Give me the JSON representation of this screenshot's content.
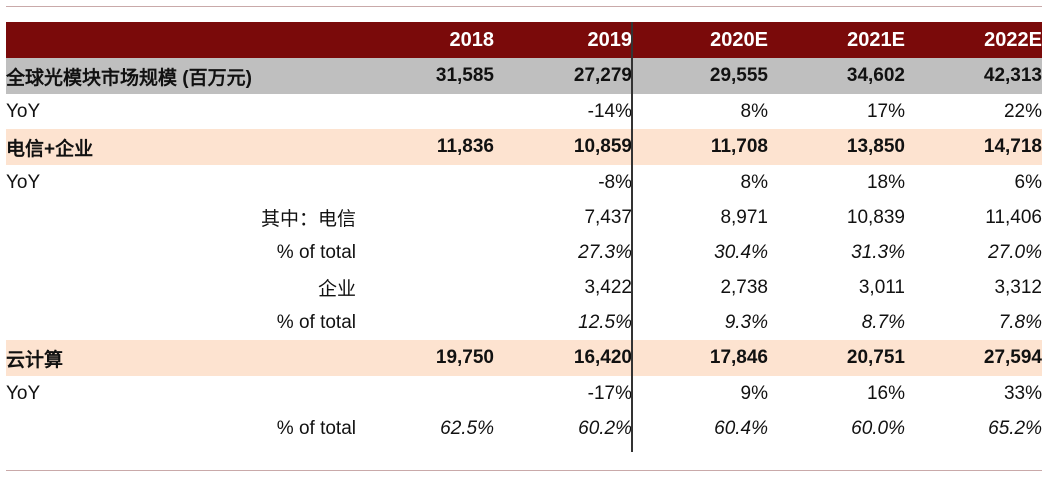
{
  "header": {
    "label": "",
    "years": [
      "2018",
      "2019",
      "2020E",
      "2021E",
      "2022E"
    ]
  },
  "rows": [
    {
      "label": "全球光模块市场规模 (百万元)",
      "values": [
        "31,585",
        "27,279",
        "29,555",
        "34,602",
        "42,313"
      ]
    },
    {
      "label": "YoY",
      "values": [
        "",
        "-14%",
        "8%",
        "17%",
        "22%"
      ]
    },
    {
      "label": "电信+企业",
      "values": [
        "11,836",
        "10,859",
        "11,708",
        "13,850",
        "14,718"
      ]
    },
    {
      "label": "YoY",
      "values": [
        "",
        "-8%",
        "8%",
        "18%",
        "6%"
      ]
    },
    {
      "label": "其中：电信",
      "values": [
        "",
        "7,437",
        "8,971",
        "10,839",
        "11,406"
      ]
    },
    {
      "label": "% of total",
      "values": [
        "",
        "27.3%",
        "30.4%",
        "31.3%",
        "27.0%"
      ]
    },
    {
      "label": "企业",
      "values": [
        "",
        "3,422",
        "2,738",
        "3,011",
        "3,312"
      ]
    },
    {
      "label": "% of total",
      "values": [
        "",
        "12.5%",
        "9.3%",
        "8.7%",
        "7.8%"
      ]
    },
    {
      "label": "云计算",
      "values": [
        "19,750",
        "16,420",
        "17,846",
        "20,751",
        "27,594"
      ]
    },
    {
      "label": "YoY",
      "values": [
        "",
        "-17%",
        "9%",
        "16%",
        "33%"
      ]
    },
    {
      "label": "% of total",
      "values": [
        "62.5%",
        "60.2%",
        "60.4%",
        "60.0%",
        "65.2%"
      ]
    }
  ]
}
